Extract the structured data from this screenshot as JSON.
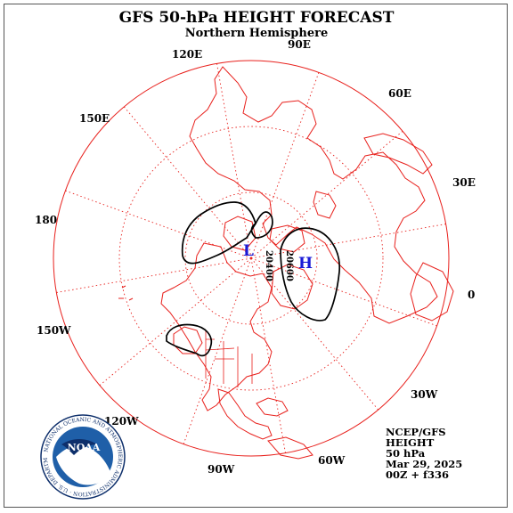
{
  "title": "GFS 50-hPa HEIGHT FORECAST",
  "subtitle": "Northern Hemisphere",
  "longitude_labels": [
    "90E",
    "60E",
    "30E",
    "0",
    "30W",
    "60W",
    "90W",
    "120W",
    "150W",
    "180",
    "150E",
    "120E"
  ],
  "contour_labels": [
    "20400",
    "20600"
  ],
  "pressure_centers": [
    {
      "label": "L",
      "kind": "low"
    },
    {
      "label": "H",
      "kind": "high"
    }
  ],
  "info_box": [
    "NCEP/GFS",
    "HEIGHT",
    "50 hPa",
    "Mar 29, 2025",
    "00Z + f336"
  ],
  "logo": {
    "name": "NOAA",
    "ring_text": "NATIONAL OCEANIC AND ATMOSPHERIC ADMINISTRATION · U.S. DEPARTMENT OF COMMERCE"
  },
  "colors": {
    "map": "#e8201c",
    "contour": "#000000",
    "pressure_center": "#1a1ad6",
    "text": "#000000",
    "logo_blue": "#1f5fa8",
    "logo_navy": "#0e2f6b"
  }
}
